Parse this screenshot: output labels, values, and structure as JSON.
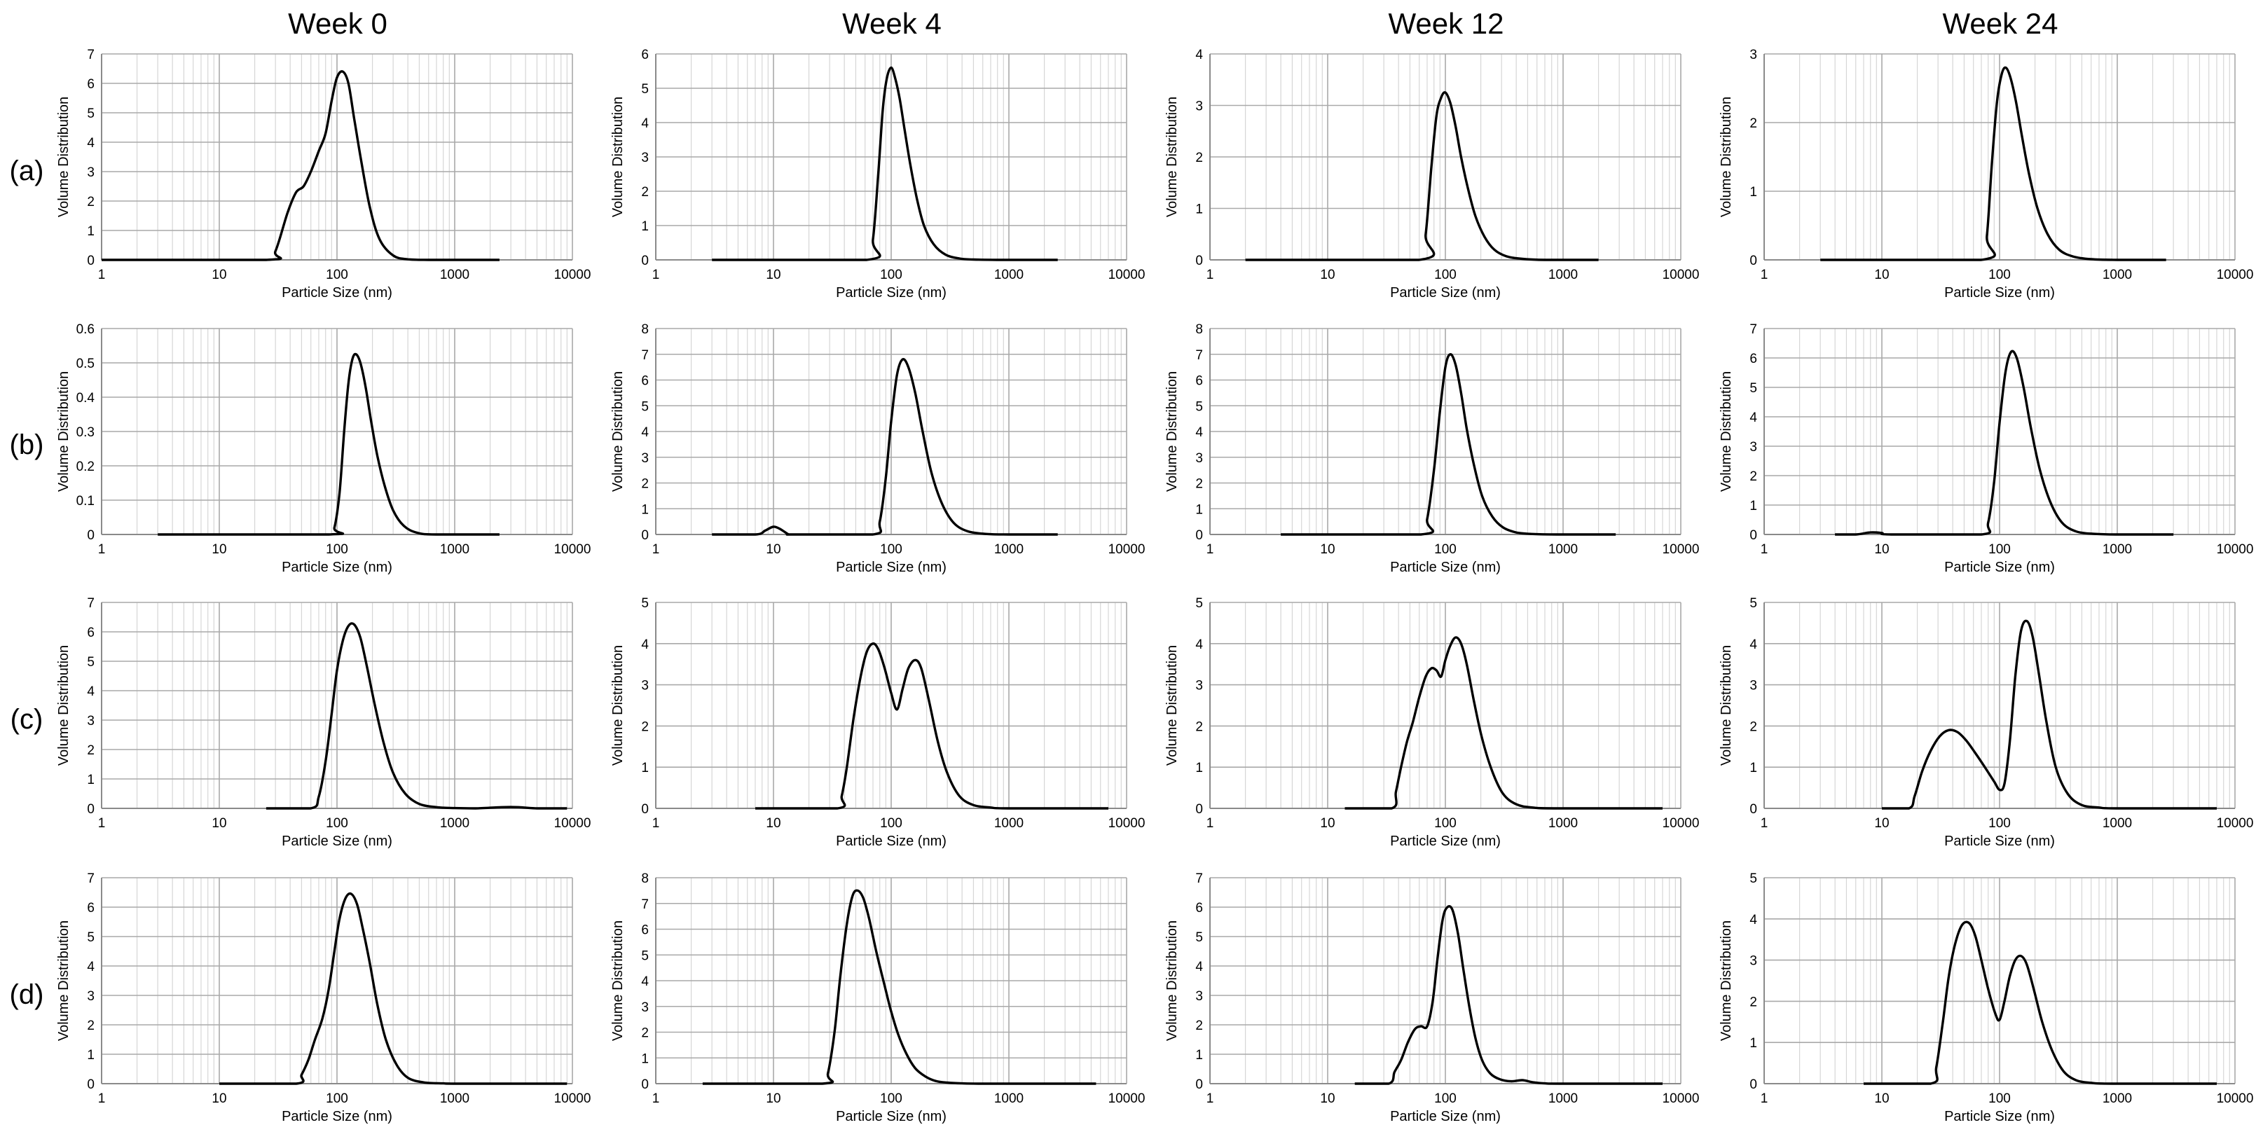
{
  "figure": {
    "columns": [
      "Week 0",
      "Week 4",
      "Week 12",
      "Week 24"
    ],
    "rows": [
      "(a)",
      "(b)",
      "(c)",
      "(d)"
    ],
    "xlabel": "Particle Size (nm)",
    "ylabel": "Volume Distribution",
    "xticks": [
      "1",
      "10",
      "100",
      "1000",
      "10000"
    ]
  },
  "chart_data": [
    {
      "type": "line",
      "row": "(a)",
      "column": "Week 0",
      "xscale": "log",
      "xlim": [
        1,
        10000
      ],
      "ylim": [
        0,
        7
      ],
      "yticks": [
        "0",
        "1",
        "2",
        "3",
        "4",
        "5",
        "6",
        "7"
      ],
      "series": [
        {
          "name": "Volume Distribution",
          "x": [
            1,
            25,
            30,
            38,
            45,
            52,
            60,
            70,
            80,
            90,
            100,
            112,
            125,
            140,
            160,
            190,
            230,
            300,
            400,
            600,
            2400
          ],
          "y": [
            0,
            0,
            0.3,
            1.6,
            2.3,
            2.5,
            3.0,
            3.7,
            4.3,
            5.4,
            6.2,
            6.4,
            6.0,
            4.8,
            3.4,
            1.8,
            0.7,
            0.15,
            0.02,
            0,
            0
          ]
        }
      ]
    },
    {
      "type": "line",
      "row": "(a)",
      "column": "Week 4",
      "xscale": "log",
      "xlim": [
        1,
        10000
      ],
      "ylim": [
        0,
        6
      ],
      "yticks": [
        "0",
        "1",
        "2",
        "3",
        "4",
        "5",
        "6"
      ],
      "series": [
        {
          "name": "Volume Distribution",
          "x": [
            3,
            62,
            70,
            78,
            85,
            92,
            100,
            108,
            118,
            130,
            145,
            165,
            190,
            230,
            290,
            380,
            500,
            800,
            2600
          ],
          "y": [
            0,
            0,
            0.6,
            2.6,
            4.4,
            5.3,
            5.6,
            5.3,
            4.7,
            3.8,
            2.8,
            1.8,
            1.0,
            0.45,
            0.15,
            0.04,
            0.01,
            0,
            0
          ]
        }
      ]
    },
    {
      "type": "line",
      "row": "(a)",
      "column": "Week 12",
      "xscale": "log",
      "xlim": [
        1,
        10000
      ],
      "ylim": [
        0,
        4
      ],
      "yticks": [
        "0",
        "1",
        "2",
        "3",
        "4"
      ],
      "series": [
        {
          "name": "Volume Distribution",
          "x": [
            2,
            60,
            68,
            76,
            84,
            92,
            100,
            110,
            122,
            136,
            155,
            180,
            215,
            260,
            330,
            450,
            700,
            2000
          ],
          "y": [
            0,
            0,
            0.5,
            1.8,
            2.8,
            3.15,
            3.25,
            3.05,
            2.6,
            2.0,
            1.4,
            0.85,
            0.45,
            0.2,
            0.07,
            0.02,
            0,
            0
          ]
        }
      ]
    },
    {
      "type": "line",
      "row": "(a)",
      "column": "Week 24",
      "xscale": "log",
      "xlim": [
        1,
        10000
      ],
      "ylim": [
        0,
        3
      ],
      "yticks": [
        "0",
        "1",
        "2",
        "3"
      ],
      "series": [
        {
          "name": "Volume Distribution",
          "x": [
            3,
            70,
            78,
            86,
            95,
            104,
            113,
            124,
            138,
            155,
            178,
            210,
            255,
            320,
            420,
            600,
            1000,
            2600
          ],
          "y": [
            0,
            0,
            0.35,
            1.4,
            2.3,
            2.7,
            2.8,
            2.65,
            2.3,
            1.8,
            1.25,
            0.75,
            0.38,
            0.15,
            0.05,
            0.01,
            0,
            0
          ]
        }
      ]
    },
    {
      "type": "line",
      "row": "(b)",
      "column": "Week 0",
      "xscale": "log",
      "xlim": [
        1,
        10000
      ],
      "ylim": [
        0,
        0.6
      ],
      "yticks": [
        "0",
        "0.1",
        "0.2",
        "0.3",
        "0.4",
        "0.5",
        "0.6"
      ],
      "series": [
        {
          "name": "Volume Distribution",
          "x": [
            3,
            85,
            95,
            105,
            115,
            125,
            135,
            145,
            158,
            175,
            195,
            220,
            255,
            300,
            370,
            480,
            700,
            2400
          ],
          "y": [
            0,
            0,
            0.02,
            0.12,
            0.3,
            0.44,
            0.51,
            0.525,
            0.5,
            0.43,
            0.33,
            0.23,
            0.14,
            0.07,
            0.025,
            0.005,
            0,
            0
          ]
        }
      ]
    },
    {
      "type": "line",
      "row": "(b)",
      "column": "Week 4",
      "xscale": "log",
      "xlim": [
        1,
        10000
      ],
      "ylim": [
        0,
        8
      ],
      "yticks": [
        "0",
        "1",
        "2",
        "3",
        "4",
        "5",
        "6",
        "7",
        "8"
      ],
      "series": [
        {
          "name": "Volume Distribution",
          "x": [
            3,
            7,
            8.5,
            10,
            11.5,
            13.5,
            15,
            70,
            80,
            90,
            100,
            112,
            125,
            140,
            160,
            185,
            220,
            270,
            340,
            450,
            650,
            1000,
            2600
          ],
          "y": [
            0,
            0,
            0.15,
            0.3,
            0.2,
            0,
            0,
            0,
            0.5,
            2.2,
            4.4,
            6.2,
            6.8,
            6.5,
            5.5,
            4.0,
            2.4,
            1.2,
            0.45,
            0.12,
            0.02,
            0,
            0
          ]
        }
      ]
    },
    {
      "type": "line",
      "row": "(b)",
      "column": "Week 12",
      "xscale": "log",
      "xlim": [
        1,
        10000
      ],
      "ylim": [
        0,
        8
      ],
      "yticks": [
        "0",
        "1",
        "2",
        "3",
        "4",
        "5",
        "6",
        "7",
        "8"
      ],
      "series": [
        {
          "name": "Volume Distribution",
          "x": [
            4,
            62,
            70,
            80,
            90,
            100,
            110,
            122,
            136,
            152,
            175,
            205,
            250,
            310,
            400,
            550,
            900,
            2800
          ],
          "y": [
            0,
            0,
            0.6,
            2.5,
            4.8,
            6.5,
            7.0,
            6.6,
            5.5,
            4.1,
            2.7,
            1.5,
            0.7,
            0.27,
            0.08,
            0.02,
            0,
            0
          ]
        }
      ]
    },
    {
      "type": "line",
      "row": "(b)",
      "column": "Week 24",
      "xscale": "log",
      "xlim": [
        1,
        10000
      ],
      "ylim": [
        0,
        7
      ],
      "yticks": [
        "0",
        "1",
        "2",
        "3",
        "4",
        "5",
        "6",
        "7"
      ],
      "series": [
        {
          "name": "Volume Distribution",
          "x": [
            4,
            6,
            8,
            10,
            12,
            70,
            80,
            90,
            100,
            112,
            125,
            140,
            160,
            185,
            220,
            270,
            340,
            450,
            650,
            1000,
            3000
          ],
          "y": [
            0,
            0,
            0.07,
            0.05,
            0,
            0,
            0.4,
            1.8,
            3.8,
            5.5,
            6.2,
            6.0,
            5.0,
            3.6,
            2.2,
            1.1,
            0.4,
            0.1,
            0.02,
            0,
            0
          ]
        }
      ]
    },
    {
      "type": "line",
      "row": "(c)",
      "column": "Week 0",
      "xscale": "log",
      "xlim": [
        1,
        10000
      ],
      "ylim": [
        0,
        7
      ],
      "yticks": [
        "0",
        "1",
        "2",
        "3",
        "4",
        "5",
        "6",
        "7"
      ],
      "series": [
        {
          "name": "Volume Distribution",
          "x": [
            25,
            60,
            70,
            80,
            90,
            100,
            112,
            125,
            140,
            158,
            180,
            210,
            250,
            300,
            380,
            500,
            700,
            1000,
            1500,
            2500,
            3500,
            5000,
            9000
          ],
          "y": [
            0,
            0,
            0.4,
            1.6,
            3.2,
            4.7,
            5.7,
            6.2,
            6.25,
            5.8,
            4.8,
            3.5,
            2.2,
            1.2,
            0.5,
            0.15,
            0.04,
            0.01,
            0,
            0.04,
            0.04,
            0,
            0
          ]
        }
      ]
    },
    {
      "type": "line",
      "row": "(c)",
      "column": "Week 4",
      "xscale": "log",
      "xlim": [
        1,
        10000
      ],
      "ylim": [
        0,
        5
      ],
      "yticks": [
        "0",
        "1",
        "2",
        "3",
        "4",
        "5"
      ],
      "series": [
        {
          "name": "Volume Distribution",
          "x": [
            7,
            35,
            38,
            42,
            48,
            55,
            62,
            70,
            78,
            88,
            100,
            112,
            125,
            140,
            160,
            180,
            210,
            250,
            300,
            380,
            500,
            700,
            1000,
            7000
          ],
          "y": [
            0,
            0,
            0.3,
            1.0,
            2.2,
            3.2,
            3.8,
            4.0,
            3.85,
            3.4,
            2.8,
            2.4,
            2.9,
            3.4,
            3.6,
            3.4,
            2.6,
            1.6,
            0.85,
            0.3,
            0.08,
            0.02,
            0,
            0
          ]
        }
      ]
    },
    {
      "type": "line",
      "row": "(c)",
      "column": "Week 12",
      "xscale": "log",
      "xlim": [
        1,
        10000
      ],
      "ylim": [
        0,
        5
      ],
      "yticks": [
        "0",
        "1",
        "2",
        "3",
        "4",
        "5"
      ],
      "series": [
        {
          "name": "Volume Distribution",
          "x": [
            14,
            35,
            38,
            42,
            47,
            53,
            60,
            68,
            76,
            84,
            92,
            100,
            110,
            122,
            136,
            152,
            175,
            205,
            250,
            310,
            400,
            550,
            900,
            7000
          ],
          "y": [
            0,
            0,
            0.4,
            1.0,
            1.6,
            2.1,
            2.7,
            3.2,
            3.4,
            3.35,
            3.2,
            3.6,
            3.95,
            4.15,
            4.0,
            3.5,
            2.6,
            1.7,
            0.9,
            0.35,
            0.1,
            0.02,
            0,
            0
          ]
        }
      ]
    },
    {
      "type": "line",
      "row": "(c)",
      "column": "Week 24",
      "xscale": "log",
      "xlim": [
        1,
        10000
      ],
      "ylim": [
        0,
        5
      ],
      "yticks": [
        "0",
        "1",
        "2",
        "3",
        "4",
        "5"
      ],
      "series": [
        {
          "name": "Volume Distribution",
          "x": [
            10,
            17,
            19,
            22,
            26,
            31,
            37,
            44,
            52,
            62,
            75,
            90,
            100,
            110,
            122,
            136,
            152,
            170,
            190,
            215,
            250,
            300,
            380,
            500,
            700,
            1000,
            7000
          ],
          "y": [
            0,
            0,
            0.3,
            0.9,
            1.4,
            1.75,
            1.9,
            1.85,
            1.65,
            1.35,
            1.0,
            0.65,
            0.45,
            0.6,
            1.6,
            3.2,
            4.3,
            4.55,
            4.2,
            3.3,
            2.1,
            1.0,
            0.35,
            0.08,
            0.02,
            0,
            0
          ]
        }
      ]
    },
    {
      "type": "line",
      "row": "(d)",
      "column": "Week 0",
      "xscale": "log",
      "xlim": [
        1,
        10000
      ],
      "ylim": [
        0,
        7
      ],
      "yticks": [
        "0",
        "1",
        "2",
        "3",
        "4",
        "5",
        "6",
        "7"
      ],
      "series": [
        {
          "name": "Volume Distribution",
          "x": [
            10,
            45,
            50,
            57,
            65,
            75,
            85,
            95,
            105,
            118,
            132,
            148,
            165,
            190,
            220,
            260,
            320,
            400,
            550,
            800,
            1100,
            9000
          ],
          "y": [
            0,
            0,
            0.3,
            0.8,
            1.5,
            2.2,
            3.2,
            4.5,
            5.6,
            6.3,
            6.45,
            6.1,
            5.3,
            4.1,
            2.7,
            1.5,
            0.65,
            0.2,
            0.04,
            0.01,
            0,
            0
          ]
        }
      ]
    },
    {
      "type": "line",
      "row": "(d)",
      "column": "Week 4",
      "xscale": "log",
      "xlim": [
        1,
        10000
      ],
      "ylim": [
        0,
        8
      ],
      "yticks": [
        "0",
        "1",
        "2",
        "3",
        "4",
        "5",
        "6",
        "7",
        "8"
      ],
      "series": [
        {
          "name": "Volume Distribution",
          "x": [
            2.5,
            26,
            29,
            33,
            37,
            42,
            47,
            52,
            58,
            65,
            75,
            88,
            100,
            115,
            135,
            160,
            195,
            240,
            300,
            400,
            550,
            800,
            1200,
            5500
          ],
          "y": [
            0,
            0,
            0.4,
            2.0,
            4.2,
            6.2,
            7.3,
            7.5,
            7.2,
            6.4,
            5.1,
            3.8,
            2.8,
            1.9,
            1.15,
            0.6,
            0.28,
            0.1,
            0.04,
            0.01,
            0,
            0,
            0,
            0
          ]
        }
      ]
    },
    {
      "type": "line",
      "row": "(d)",
      "column": "Week 12",
      "xscale": "log",
      "xlim": [
        1,
        10000
      ],
      "ylim": [
        0,
        7
      ],
      "yticks": [
        "0",
        "1",
        "2",
        "3",
        "4",
        "5",
        "6",
        "7"
      ],
      "series": [
        {
          "name": "Volume Distribution",
          "x": [
            17,
            33,
            37,
            42,
            48,
            55,
            62,
            70,
            78,
            86,
            95,
            104,
            115,
            128,
            142,
            160,
            180,
            205,
            240,
            290,
            360,
            450,
            550,
            700,
            1000,
            7000
          ],
          "y": [
            0,
            0,
            0.4,
            0.8,
            1.4,
            1.85,
            1.95,
            1.95,
            2.8,
            4.3,
            5.6,
            6.0,
            5.9,
            5.1,
            3.9,
            2.6,
            1.55,
            0.8,
            0.35,
            0.15,
            0.08,
            0.12,
            0.05,
            0.01,
            0,
            0
          ]
        }
      ]
    },
    {
      "type": "line",
      "row": "(d)",
      "column": "Week 24",
      "xscale": "log",
      "xlim": [
        1,
        10000
      ],
      "ylim": [
        0,
        5
      ],
      "yticks": [
        "0",
        "1",
        "2",
        "3",
        "4",
        "5"
      ],
      "series": [
        {
          "name": "Volume Distribution",
          "x": [
            7,
            26,
            29,
            33,
            37,
            42,
            48,
            55,
            62,
            70,
            80,
            92,
            100,
            110,
            122,
            136,
            152,
            170,
            195,
            230,
            280,
            350,
            450,
            600,
            900,
            7000
          ],
          "y": [
            0,
            0,
            0.4,
            1.5,
            2.6,
            3.4,
            3.85,
            3.9,
            3.6,
            3.0,
            2.3,
            1.7,
            1.55,
            2.0,
            2.6,
            3.0,
            3.1,
            2.9,
            2.3,
            1.5,
            0.8,
            0.3,
            0.08,
            0.02,
            0,
            0
          ]
        }
      ]
    }
  ]
}
